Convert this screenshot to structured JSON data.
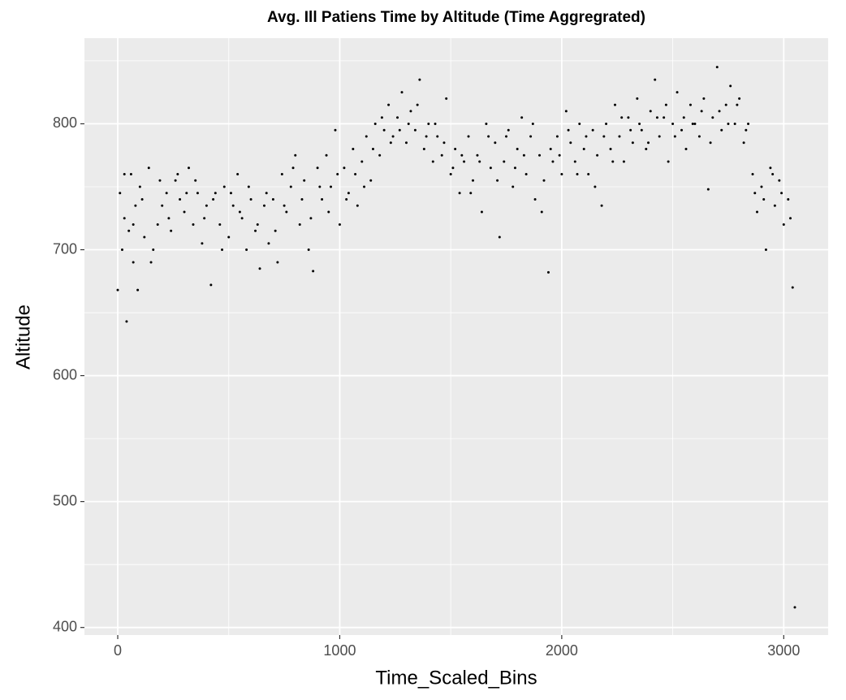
{
  "chart_data": {
    "type": "scatter",
    "title": "Avg. Ill Patiens Time by Altitude (Time Aggregrated)",
    "x_label": "Time_Scaled_Bins",
    "y_label": "Altitude",
    "xlim": [
      -150,
      3200
    ],
    "ylim": [
      394,
      868
    ],
    "xticks": [
      0,
      1000,
      2000,
      3000
    ],
    "yticks": [
      400,
      500,
      600,
      700,
      800
    ],
    "x_minor_breaks": [
      500,
      1500,
      2500
    ],
    "y_minor_breaks": [
      450,
      550,
      650,
      750,
      850
    ],
    "grid": true,
    "color": "#000000",
    "x": [
      0,
      10,
      20,
      30,
      40,
      50,
      60,
      70,
      80,
      90,
      100,
      120,
      140,
      160,
      180,
      200,
      220,
      240,
      260,
      280,
      300,
      320,
      340,
      360,
      380,
      400,
      420,
      440,
      460,
      480,
      500,
      520,
      540,
      560,
      580,
      600,
      620,
      640,
      660,
      680,
      700,
      720,
      740,
      760,
      780,
      800,
      820,
      840,
      860,
      880,
      900,
      920,
      940,
      960,
      980,
      1000,
      1020,
      1040,
      1060,
      1080,
      1100,
      1120,
      1140,
      1160,
      1180,
      1200,
      1220,
      1240,
      1260,
      1280,
      1300,
      1320,
      1340,
      1360,
      1380,
      1400,
      1420,
      1440,
      1460,
      1480,
      1500,
      1520,
      1540,
      1560,
      1580,
      1600,
      1620,
      1640,
      1660,
      1680,
      1700,
      1720,
      1740,
      1760,
      1780,
      1800,
      1820,
      1840,
      1860,
      1880,
      1900,
      1920,
      1940,
      1960,
      1980,
      2000,
      2020,
      2040,
      2060,
      2080,
      2100,
      2120,
      2140,
      2160,
      2180,
      2200,
      2220,
      2240,
      2260,
      2280,
      2300,
      2320,
      2340,
      2360,
      2380,
      2400,
      2420,
      2440,
      2460,
      2480,
      2500,
      2520,
      2540,
      2560,
      2580,
      2600,
      2620,
      2640,
      2660,
      2680,
      2700,
      2720,
      2740,
      2760,
      2780,
      2800,
      2820,
      2840,
      2860,
      2880,
      2900,
      2920,
      2940,
      2960,
      2980,
      3000,
      3020,
      3040,
      3050,
      30,
      70,
      110,
      150,
      190,
      230,
      270,
      310,
      350,
      390,
      430,
      470,
      510,
      550,
      590,
      630,
      670,
      710,
      750,
      790,
      830,
      870,
      910,
      950,
      990,
      1030,
      1070,
      1110,
      1150,
      1190,
      1230,
      1270,
      1310,
      1350,
      1390,
      1430,
      1470,
      1510,
      1550,
      1590,
      1630,
      1670,
      1710,
      1750,
      1790,
      1830,
      1870,
      1910,
      1950,
      1990,
      2030,
      2070,
      2110,
      2150,
      2190,
      2230,
      2270,
      2310,
      2350,
      2390,
      2430,
      2470,
      2510,
      2550,
      2590,
      2630,
      2670,
      2710,
      2750,
      2790,
      2830,
      2870,
      2910,
      2950,
      2990,
      3030
    ],
    "y": [
      668,
      745,
      700,
      725,
      643,
      715,
      760,
      690,
      735,
      668,
      750,
      710,
      765,
      700,
      720,
      735,
      745,
      715,
      755,
      740,
      730,
      765,
      720,
      745,
      705,
      735,
      672,
      745,
      720,
      750,
      710,
      735,
      760,
      725,
      700,
      740,
      715,
      685,
      735,
      705,
      740,
      690,
      760,
      730,
      750,
      775,
      720,
      755,
      700,
      683,
      765,
      740,
      775,
      750,
      795,
      720,
      765,
      745,
      780,
      735,
      770,
      790,
      755,
      800,
      775,
      795,
      815,
      790,
      805,
      825,
      785,
      810,
      795,
      835,
      780,
      800,
      770,
      790,
      775,
      820,
      760,
      780,
      745,
      770,
      790,
      755,
      775,
      730,
      800,
      765,
      785,
      710,
      770,
      795,
      750,
      780,
      805,
      760,
      790,
      740,
      775,
      755,
      682,
      770,
      790,
      760,
      810,
      785,
      770,
      800,
      780,
      760,
      795,
      775,
      735,
      800,
      780,
      815,
      790,
      770,
      805,
      785,
      820,
      795,
      780,
      810,
      835,
      790,
      805,
      770,
      800,
      825,
      795,
      780,
      815,
      800,
      790,
      820,
      748,
      805,
      845,
      795,
      815,
      830,
      800,
      820,
      785,
      800,
      760,
      730,
      750,
      700,
      765,
      735,
      755,
      720,
      740,
      670,
      416,
      760,
      720,
      740,
      690,
      755,
      725,
      760,
      745,
      755,
      725,
      740,
      700,
      745,
      730,
      750,
      720,
      745,
      715,
      735,
      765,
      740,
      725,
      750,
      730,
      760,
      740,
      760,
      750,
      780,
      805,
      785,
      795,
      800,
      815,
      790,
      800,
      785,
      765,
      775,
      745,
      770,
      790,
      755,
      790,
      765,
      775,
      800,
      730,
      780,
      775,
      795,
      760,
      790,
      750,
      790,
      770,
      805,
      795,
      800,
      785,
      805,
      815,
      790,
      805,
      800,
      810,
      785,
      810,
      800,
      815,
      795,
      745,
      740,
      760,
      745,
      725
    ]
  }
}
